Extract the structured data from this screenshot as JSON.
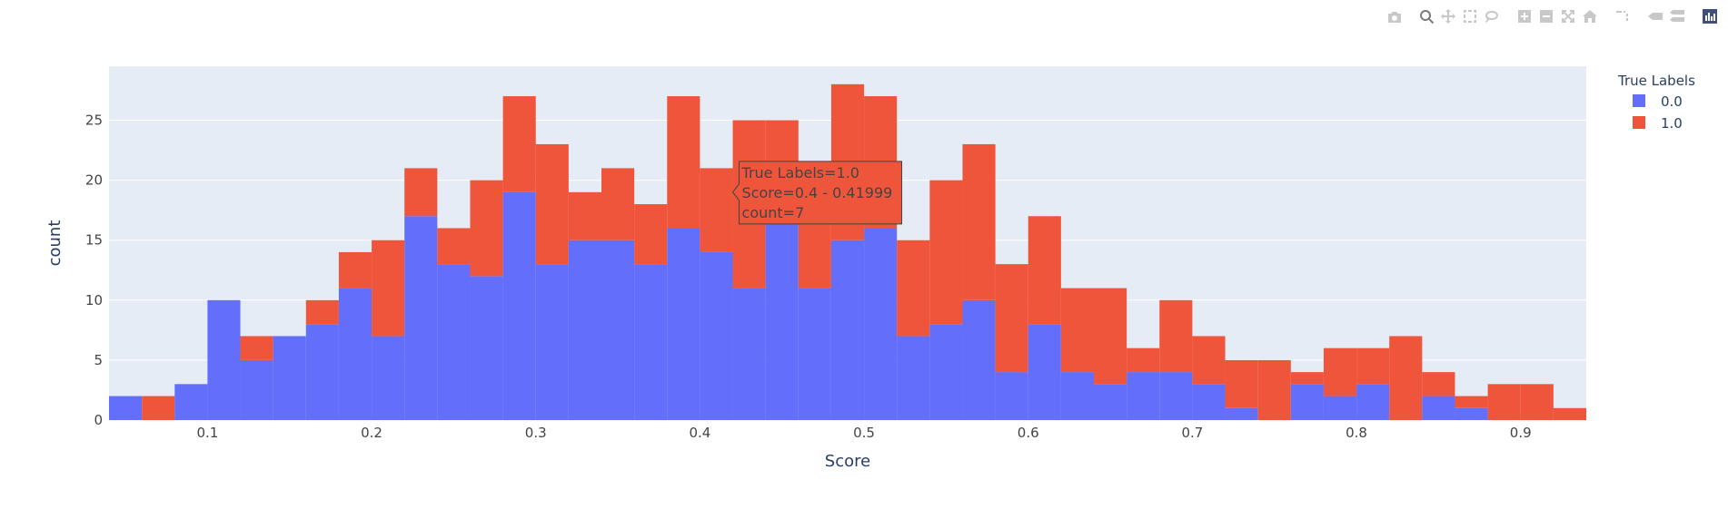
{
  "modebar": {
    "icons": [
      "camera-icon",
      "zoom-icon",
      "pan-icon",
      "box-select-icon",
      "lasso-icon",
      "zoom-in-icon",
      "zoom-out-icon",
      "autoscale-icon",
      "reset-axes-icon",
      "spike-lines-icon",
      "hover-closest-icon",
      "hover-compare-icon",
      "plotly-logo-icon"
    ],
    "active": "zoom-icon"
  },
  "chart_data": {
    "type": "bar",
    "barmode": "stack",
    "bin_start": 0.04,
    "bin_size": 0.02,
    "xlabel": "Score",
    "ylabel": "count",
    "xlim": [
      0.04,
      0.94
    ],
    "ylim": [
      0,
      29.5
    ],
    "x_ticks": [
      "0.1",
      "0.2",
      "0.3",
      "0.4",
      "0.5",
      "0.6",
      "0.7",
      "0.8",
      "0.9"
    ],
    "x_tick_values": [
      0.1,
      0.2,
      0.3,
      0.4,
      0.5,
      0.6,
      0.7,
      0.8,
      0.9
    ],
    "y_ticks": [
      "0",
      "5",
      "10",
      "15",
      "20",
      "25"
    ],
    "y_tick_values": [
      0,
      5,
      10,
      15,
      20,
      25
    ],
    "grid": true,
    "legend": {
      "title": "True Labels",
      "placement": "top-right"
    },
    "series": [
      {
        "name": "0.0",
        "color": "#636efa",
        "values": [
          2,
          0,
          3,
          10,
          5,
          7,
          8,
          11,
          7,
          17,
          13,
          12,
          19,
          13,
          15,
          15,
          13,
          16,
          14,
          11,
          17,
          11,
          15,
          16,
          7,
          8,
          10,
          4,
          8,
          4,
          3,
          4,
          4,
          3,
          1,
          0,
          3,
          2,
          3,
          0,
          2,
          1,
          0,
          0,
          0
        ]
      },
      {
        "name": "1.0",
        "color": "#ef553b",
        "values": [
          0,
          2,
          0,
          0,
          2,
          0,
          2,
          3,
          8,
          4,
          3,
          8,
          8,
          10,
          4,
          6,
          5,
          11,
          7,
          14,
          8,
          6,
          13,
          11,
          8,
          12,
          13,
          9,
          9,
          7,
          8,
          2,
          6,
          4,
          4,
          5,
          1,
          4,
          3,
          7,
          2,
          1,
          3,
          3,
          1
        ]
      }
    ],
    "hover": {
      "line1": "True Labels=1.0",
      "line2": "Score=0.4 - 0.41999",
      "line3": "count=7",
      "anchor_x": 0.42,
      "anchor_y": 19
    }
  }
}
